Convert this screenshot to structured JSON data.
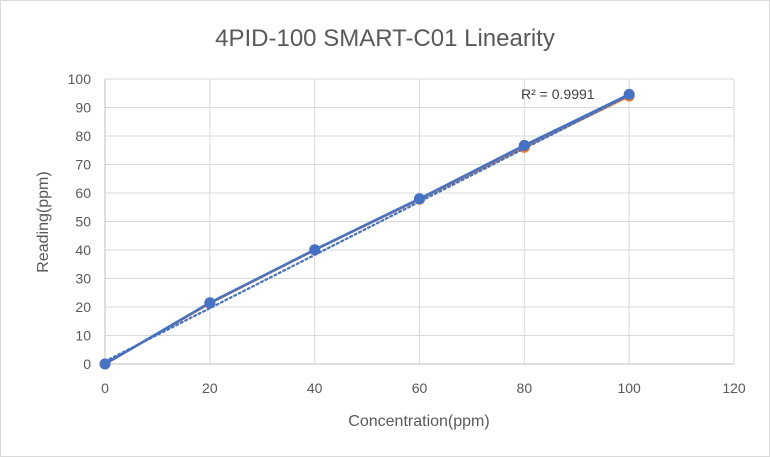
{
  "chart_data": {
    "type": "line",
    "title": "4PID-100 SMART-C01 Linearity",
    "xlabel": "Concentration(ppm)",
    "ylabel": "Reading(ppm)",
    "xlim": [
      0,
      120
    ],
    "ylim": [
      0,
      100
    ],
    "xticks": [
      "0",
      "20",
      "40",
      "60",
      "80",
      "100",
      "120"
    ],
    "yticks": [
      "0",
      "10",
      "20",
      "30",
      "40",
      "50",
      "60",
      "70",
      "80",
      "90",
      "100"
    ],
    "grid": true,
    "legend": "none",
    "series": [
      {
        "color": "#ED7D31",
        "marker": "circle",
        "x": [
          0,
          20,
          40,
          60,
          80,
          100
        ],
        "values": [
          0,
          21.3,
          40,
          57.8,
          76,
          94
        ]
      },
      {
        "color": "#4472C4",
        "marker": "circle",
        "x": [
          0,
          20,
          40,
          60,
          80,
          100
        ],
        "values": [
          0,
          21.5,
          40.1,
          58,
          76.7,
          94.6
        ]
      }
    ],
    "trendline": {
      "style": "dotted",
      "color": "#4472C4",
      "x": [
        0,
        100
      ],
      "values": [
        0.9,
        94.3
      ],
      "label": "R² = 0.9991"
    }
  }
}
